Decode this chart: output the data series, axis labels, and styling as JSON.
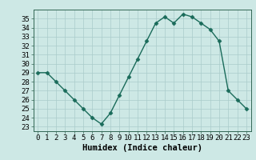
{
  "x": [
    0,
    1,
    2,
    3,
    4,
    5,
    6,
    7,
    8,
    9,
    10,
    11,
    12,
    13,
    14,
    15,
    16,
    17,
    18,
    19,
    20,
    21,
    22,
    23
  ],
  "y": [
    29,
    29,
    28,
    27,
    26,
    25,
    24,
    23.3,
    24.5,
    26.5,
    28.5,
    30.5,
    32.5,
    34.5,
    35.2,
    34.5,
    35.5,
    35.2,
    34.5,
    33.8,
    32.5,
    27,
    26,
    25
  ],
  "line_color": "#1a6b5a",
  "marker": "D",
  "marker_size": 2.5,
  "bg_color": "#cde8e5",
  "grid_color": "#aaccca",
  "xlabel": "Humidex (Indice chaleur)",
  "ylim_min": 22.5,
  "ylim_max": 36.0,
  "xlim_min": -0.5,
  "xlim_max": 23.5,
  "yticks": [
    23,
    24,
    25,
    26,
    27,
    28,
    29,
    30,
    31,
    32,
    33,
    34,
    35
  ],
  "xticks": [
    0,
    1,
    2,
    3,
    4,
    5,
    6,
    7,
    8,
    9,
    10,
    11,
    12,
    13,
    14,
    15,
    16,
    17,
    18,
    19,
    20,
    21,
    22,
    23
  ],
  "tick_label_fontsize": 6.5,
  "xlabel_fontsize": 7.5,
  "spine_color": "#336655",
  "linewidth": 1.0
}
